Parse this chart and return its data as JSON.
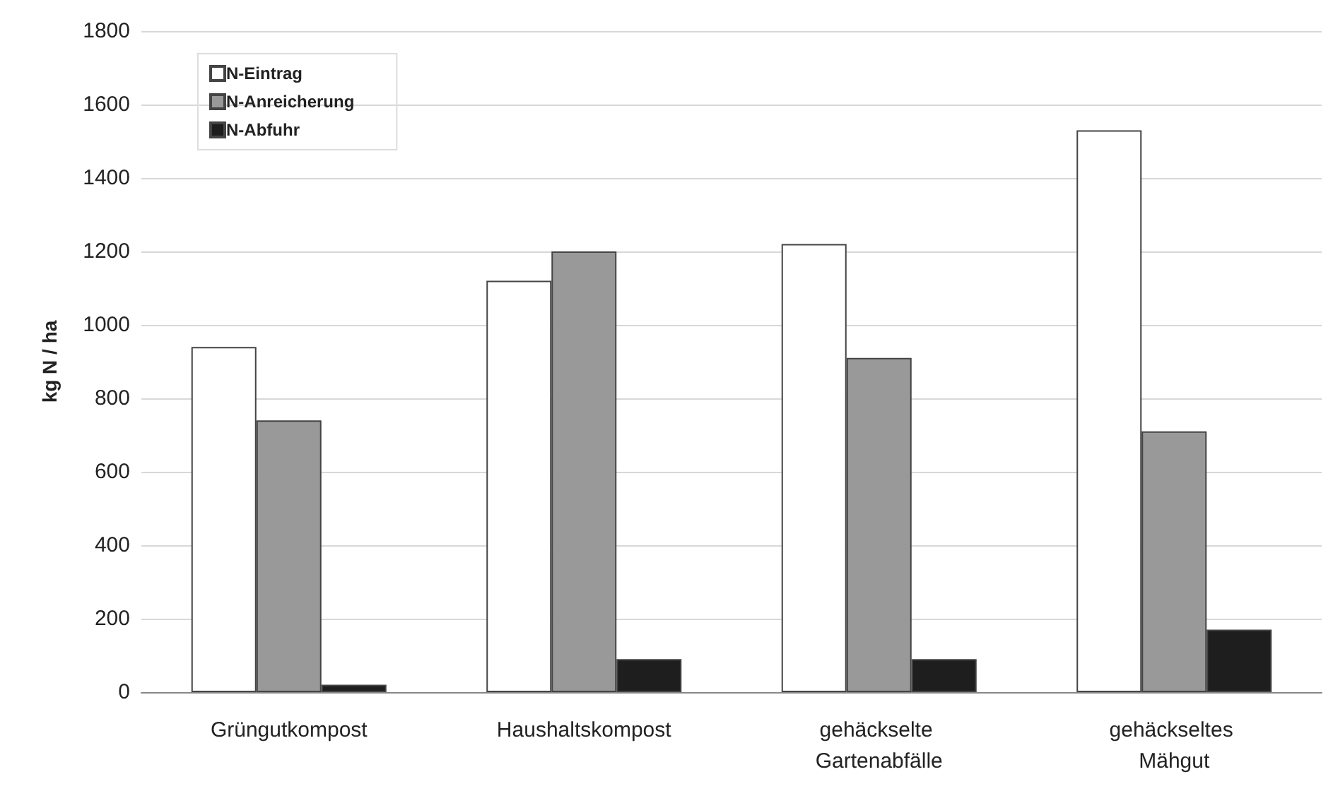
{
  "chart_data": {
    "type": "bar",
    "ylabel": "kg N / ha",
    "categories": [
      "Grüngutkompost",
      "Haushaltskompost",
      "gehäckselte Gartenabfälle",
      "gehäckseltes Mähgut"
    ],
    "series": [
      {
        "name": "N-Eintrag",
        "color": "#ffffff",
        "values": [
          940,
          1120,
          1220,
          1530
        ]
      },
      {
        "name": "N-Anreicherung",
        "color": "#999999",
        "values": [
          740,
          1200,
          910,
          710
        ]
      },
      {
        "name": "N-Abfuhr",
        "color": "#1e1e1e",
        "values": [
          20,
          90,
          90,
          170
        ]
      }
    ],
    "ylim": [
      0,
      1800
    ],
    "yticks": [
      0,
      200,
      400,
      600,
      800,
      1000,
      1200,
      1400,
      1600,
      1800
    ],
    "grid": "y",
    "legend": "top left"
  }
}
